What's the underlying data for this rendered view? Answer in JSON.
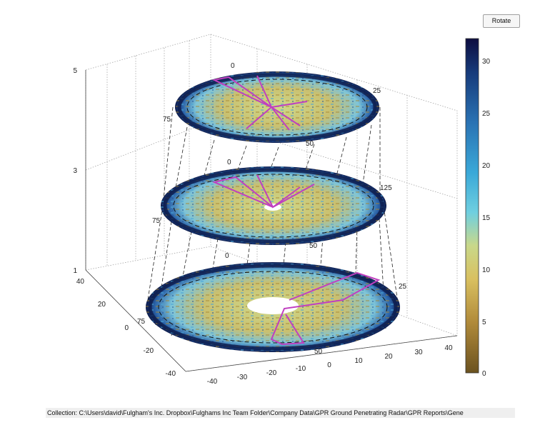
{
  "toolbar": {
    "rotate_label": "Rotate"
  },
  "status_bar": {
    "collection_text": "Collection: C:\\Users\\david\\Fulgham's Inc. Dropbox\\Fulghams Inc Team Folder\\Company Data\\GPR Ground Penetrating Radar\\GPR Reports\\Gene"
  },
  "colorbar": {
    "ticks": [
      "30",
      "25",
      "20",
      "15",
      "10",
      "5",
      "0"
    ],
    "range": [
      0,
      32
    ]
  },
  "axes": {
    "z_ticks": [
      "5",
      "3",
      "1"
    ],
    "y_ticks": [
      "40",
      "20",
      "0",
      "-20",
      "-40"
    ],
    "x_ticks": [
      "-40",
      "-30",
      "-20",
      "-10",
      "0",
      "10",
      "20",
      "30",
      "40"
    ]
  },
  "slices": [
    {
      "labels": [
        "0",
        "25",
        "75",
        "50"
      ]
    },
    {
      "labels": [
        "0",
        "125",
        "75",
        "50"
      ]
    },
    {
      "labels": [
        "0",
        "25",
        "75",
        "50"
      ]
    }
  ],
  "colors": {
    "accent_path": "#c040c0",
    "colormap_low": "#6b5220",
    "colormap_high": "#0d0d40"
  }
}
